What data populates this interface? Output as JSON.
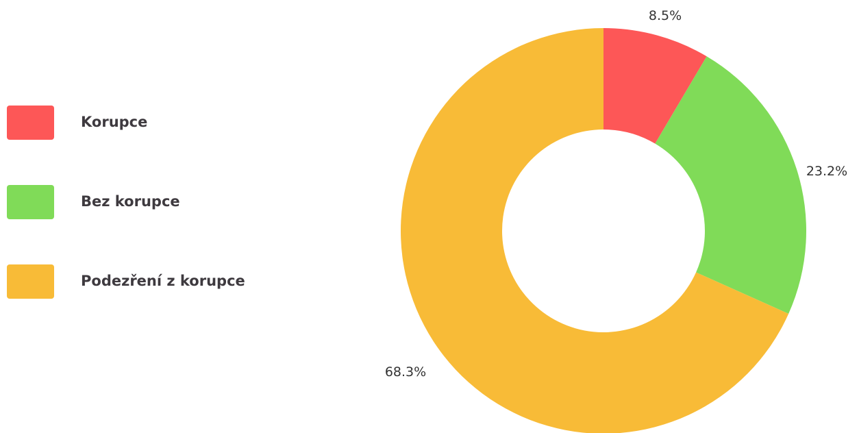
{
  "chart_data": {
    "type": "pie",
    "donut": true,
    "categories": [
      "Korupce",
      "Bez korupce",
      "Podezření z korupce"
    ],
    "values": [
      8.5,
      23.2,
      68.3
    ],
    "value_labels": [
      "8.5%",
      "23.2%",
      "68.3%"
    ],
    "colors": [
      "#fd5757",
      "#80db58",
      "#f8bb37"
    ],
    "legend_position": "left",
    "start_angle_deg": 0,
    "direction": "clockwise"
  }
}
